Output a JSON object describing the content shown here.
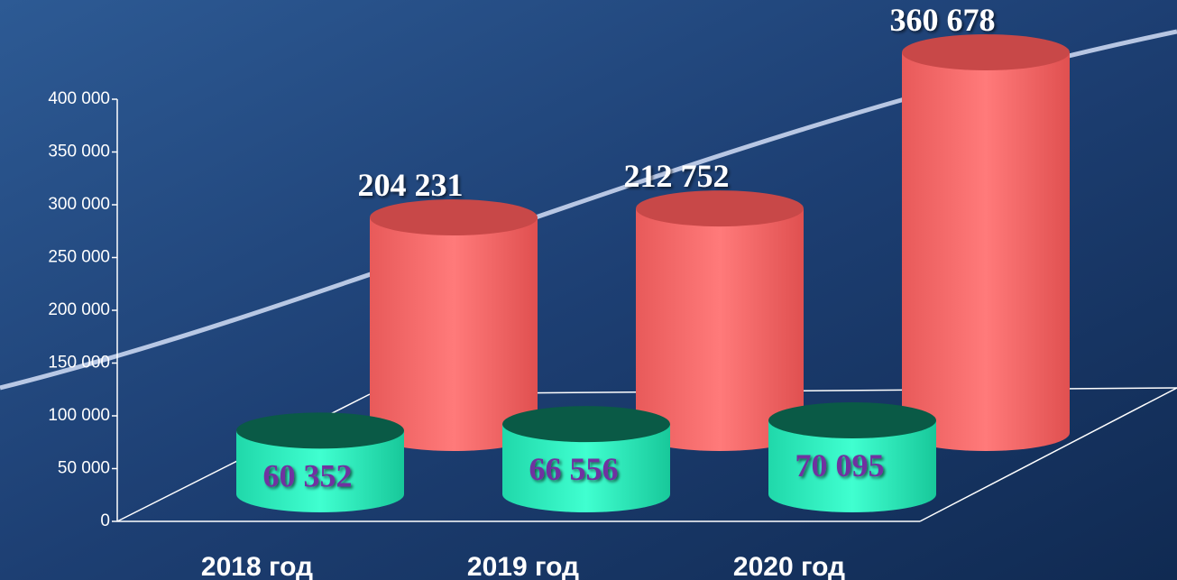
{
  "chart_data": {
    "type": "bar3d",
    "categories": [
      "2018 год",
      "2019 год",
      "2020 год"
    ],
    "series": [
      {
        "color": "#ff6f6f",
        "values": [
          204231,
          212752,
          360678
        ],
        "value_labels": [
          "204 231",
          "212 752",
          "360 678"
        ]
      },
      {
        "color": "#33ffcc",
        "values": [
          60352,
          66556,
          70095
        ],
        "value_labels": [
          "60 352",
          "66 556",
          "70 095"
        ]
      }
    ],
    "ylim": [
      0,
      400000
    ],
    "yticks": [
      0,
      {
        "value": 50000,
        "label": "50 000"
      },
      {
        "value": 100000,
        "label": "100 000"
      },
      {
        "value": 150000,
        "label": "150 000"
      },
      {
        "value": 200000,
        "label": "200 000"
      },
      {
        "value": 250000,
        "label": "250 000"
      },
      {
        "value": 300000,
        "label": "300 000"
      },
      {
        "value": 350000,
        "label": "350 000"
      },
      {
        "value": 400000,
        "label": "400 000"
      }
    ]
  }
}
